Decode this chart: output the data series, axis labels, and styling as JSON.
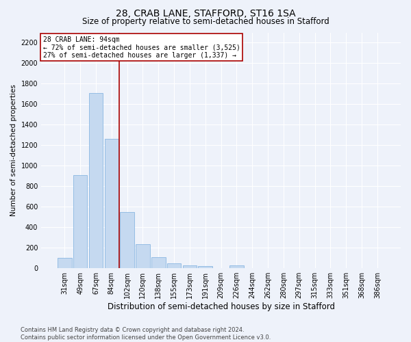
{
  "title": "28, CRAB LANE, STAFFORD, ST16 1SA",
  "subtitle": "Size of property relative to semi-detached houses in Stafford",
  "xlabel": "Distribution of semi-detached houses by size in Stafford",
  "ylabel": "Number of semi-detached properties",
  "footnote": "Contains HM Land Registry data © Crown copyright and database right 2024.\nContains public sector information licensed under the Open Government Licence v3.0.",
  "categories": [
    "31sqm",
    "49sqm",
    "67sqm",
    "84sqm",
    "102sqm",
    "120sqm",
    "138sqm",
    "155sqm",
    "173sqm",
    "191sqm",
    "209sqm",
    "226sqm",
    "244sqm",
    "262sqm",
    "280sqm",
    "297sqm",
    "315sqm",
    "333sqm",
    "351sqm",
    "368sqm",
    "386sqm"
  ],
  "values": [
    100,
    910,
    1710,
    1260,
    550,
    235,
    105,
    45,
    30,
    20,
    0,
    25,
    0,
    0,
    0,
    0,
    0,
    0,
    0,
    0,
    0
  ],
  "bar_color": "#c5d9f0",
  "bar_edge_color": "#7aadde",
  "property_line_x": 3.5,
  "property_size": "94sqm",
  "pct_smaller": 72,
  "count_smaller": "3,525",
  "pct_larger": 27,
  "count_larger": "1,337",
  "annotation_box_color": "#aa0000",
  "ylim": [
    0,
    2300
  ],
  "yticks": [
    0,
    200,
    400,
    600,
    800,
    1000,
    1200,
    1400,
    1600,
    1800,
    2000,
    2200
  ],
  "background_color": "#eef2fa",
  "grid_color": "#ffffff",
  "title_fontsize": 10,
  "subtitle_fontsize": 8.5,
  "ylabel_fontsize": 7.5,
  "xlabel_fontsize": 8.5,
  "tick_fontsize": 7,
  "footnote_fontsize": 6,
  "annot_fontsize": 7
}
